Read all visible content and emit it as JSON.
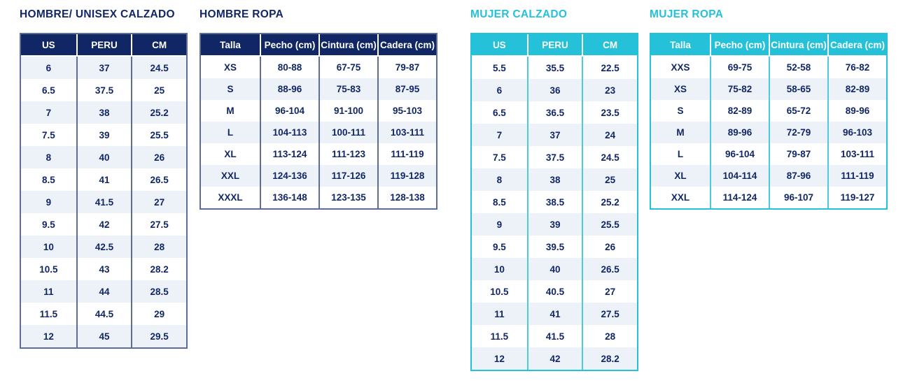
{
  "colors": {
    "navy": "#112765",
    "cyan": "#25c1d9",
    "row_stripe": "#edf2f9",
    "navy_border": "#5e6d96",
    "header_text": "#ffffff"
  },
  "tables": [
    {
      "title": "HOMBRE/ UNISEX CALZADO",
      "theme": "navy",
      "columns": [
        "US",
        "PERU",
        "CM"
      ],
      "rows": [
        [
          "6",
          "37",
          "24.5"
        ],
        [
          "6.5",
          "37.5",
          "25"
        ],
        [
          "7",
          "38",
          "25.2"
        ],
        [
          "7.5",
          "39",
          "25.5"
        ],
        [
          "8",
          "40",
          "26"
        ],
        [
          "8.5",
          "41",
          "26.5"
        ],
        [
          "9",
          "41.5",
          "27"
        ],
        [
          "9.5",
          "42",
          "27.5"
        ],
        [
          "10",
          "42.5",
          "28"
        ],
        [
          "10.5",
          "43",
          "28.2"
        ],
        [
          "11",
          "44",
          "28.5"
        ],
        [
          "11.5",
          "44.5",
          "29"
        ],
        [
          "12",
          "45",
          "29.5"
        ]
      ]
    },
    {
      "title": "HOMBRE ROPA",
      "theme": "navy",
      "columns": [
        "Talla",
        "Pecho (cm)",
        "Cintura (cm)",
        "Cadera (cm)"
      ],
      "rows": [
        [
          "XS",
          "80-88",
          "67-75",
          "79-87"
        ],
        [
          "S",
          "88-96",
          "75-83",
          "87-95"
        ],
        [
          "M",
          "96-104",
          "91-100",
          "95-103"
        ],
        [
          "L",
          "104-113",
          "100-111",
          "103-111"
        ],
        [
          "XL",
          "113-124",
          "111-123",
          "111-119"
        ],
        [
          "XXL",
          "124-136",
          "117-126",
          "119-128"
        ],
        [
          "XXXL",
          "136-148",
          "123-135",
          "128-138"
        ]
      ]
    },
    {
      "title": "MUJER CALZADO",
      "theme": "cyan",
      "columns": [
        "US",
        "PERU",
        "CM"
      ],
      "rows": [
        [
          "5.5",
          "35.5",
          "22.5"
        ],
        [
          "6",
          "36",
          "23"
        ],
        [
          "6.5",
          "36.5",
          "23.5"
        ],
        [
          "7",
          "37",
          "24"
        ],
        [
          "7.5",
          "37.5",
          "24.5"
        ],
        [
          "8",
          "38",
          "25"
        ],
        [
          "8.5",
          "38.5",
          "25.2"
        ],
        [
          "9",
          "39",
          "25.5"
        ],
        [
          "9.5",
          "39.5",
          "26"
        ],
        [
          "10",
          "40",
          "26.5"
        ],
        [
          "10.5",
          "40.5",
          "27"
        ],
        [
          "11",
          "41",
          "27.5"
        ],
        [
          "11.5",
          "41.5",
          "28"
        ],
        [
          "12",
          "42",
          "28.2"
        ]
      ]
    },
    {
      "title": "MUJER ROPA",
      "theme": "cyan",
      "columns": [
        "Talla",
        "Pecho (cm)",
        "Cintura (cm)",
        "Cadera (cm)"
      ],
      "rows": [
        [
          "XXS",
          "69-75",
          "52-58",
          "76-82"
        ],
        [
          "XS",
          "75-82",
          "58-65",
          "82-89"
        ],
        [
          "S",
          "82-89",
          "65-72",
          "89-96"
        ],
        [
          "M",
          "89-96",
          "72-79",
          "96-103"
        ],
        [
          "L",
          "96-104",
          "79-87",
          "103-111"
        ],
        [
          "XL",
          "104-114",
          "87-96",
          "111-119"
        ],
        [
          "XXL",
          "114-124",
          "96-107",
          "119-127"
        ]
      ]
    }
  ]
}
